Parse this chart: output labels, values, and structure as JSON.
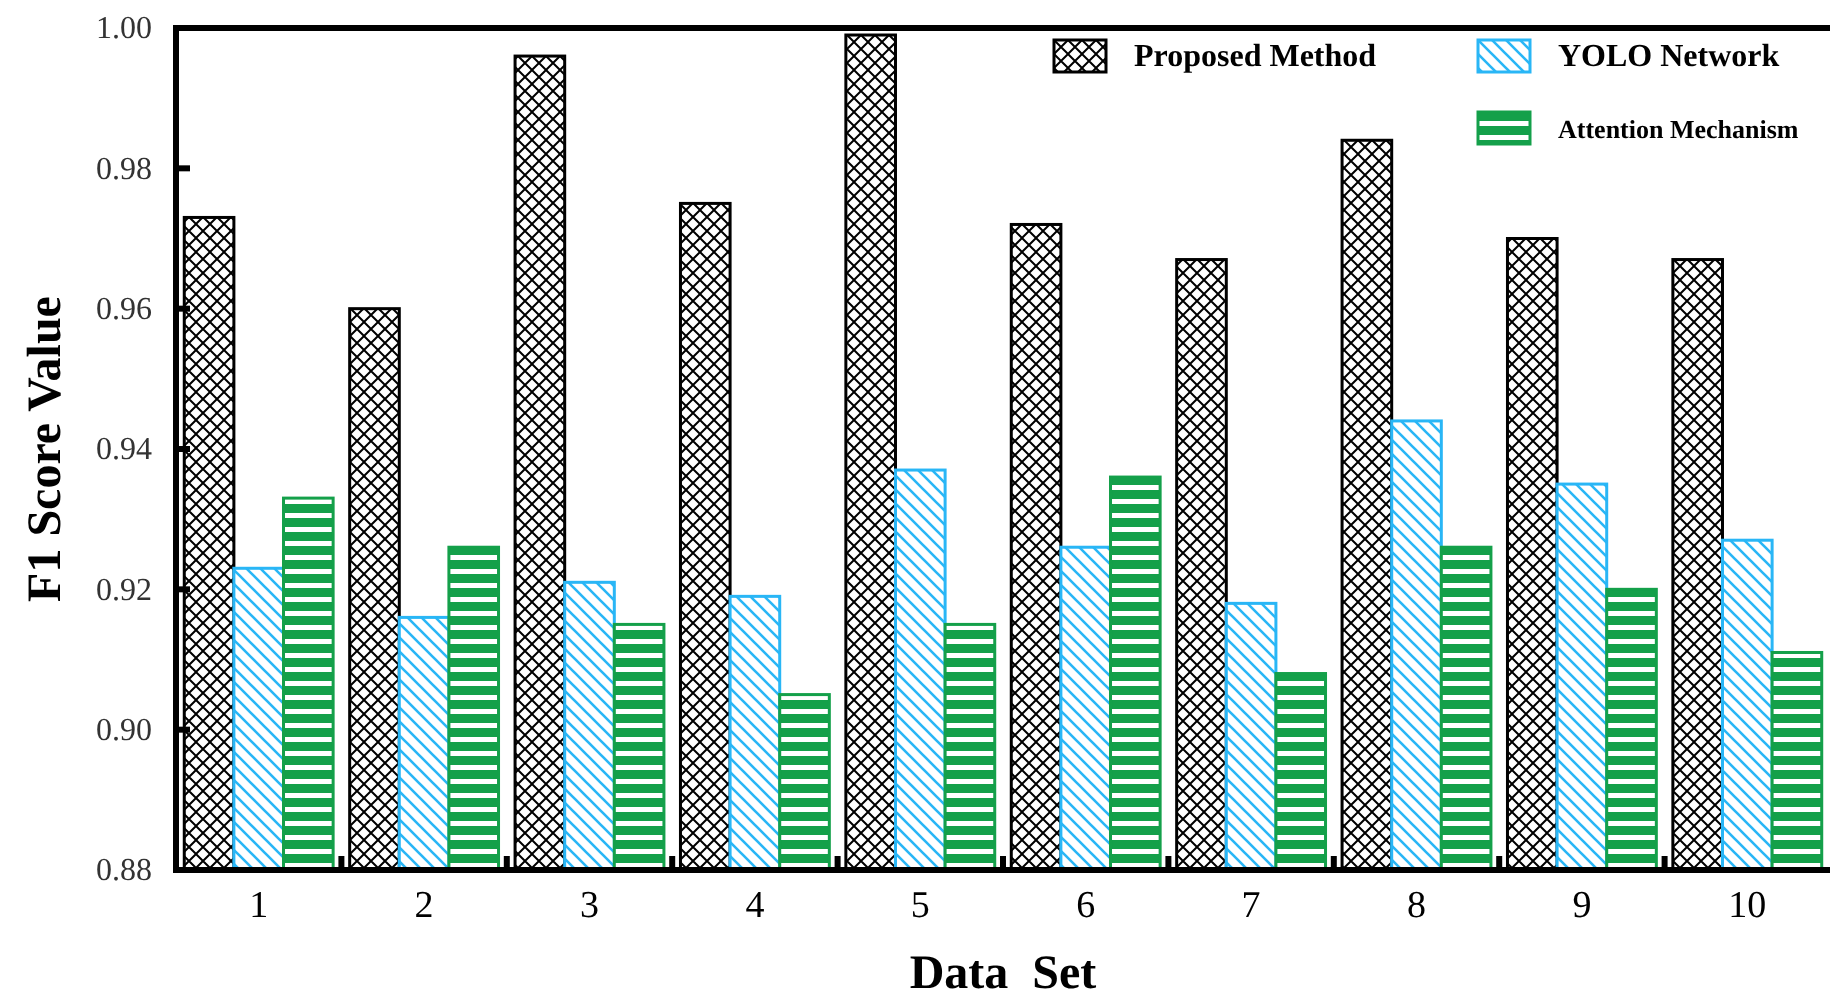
{
  "chart_data": {
    "type": "bar",
    "xlabel": "Data  Set",
    "ylabel": "F1 Score Value",
    "categories": [
      "1",
      "2",
      "3",
      "4",
      "5",
      "6",
      "7",
      "8",
      "9",
      "10"
    ],
    "series": [
      {
        "name": "Proposed Method",
        "color": "#000000",
        "values": [
          0.973,
          0.96,
          0.996,
          0.975,
          0.999,
          0.972,
          0.967,
          0.984,
          0.97,
          0.967
        ]
      },
      {
        "name": "YOLO Network",
        "color": "#29b6f6",
        "values": [
          0.923,
          0.916,
          0.921,
          0.919,
          0.937,
          0.926,
          0.918,
          0.944,
          0.935,
          0.927
        ]
      },
      {
        "name": "Attention Mechanism",
        "color": "#14a04a",
        "values": [
          0.933,
          0.926,
          0.915,
          0.905,
          0.915,
          0.936,
          0.908,
          0.926,
          0.92,
          0.911
        ]
      }
    ],
    "ylim": [
      0.88,
      1.0
    ],
    "yticks": [
      0.88,
      {
        "value": 0.9,
        "label": "0.90"
      },
      0.92,
      0.94,
      0.96,
      0.98,
      {
        "value": 1.0,
        "label": "1.00"
      }
    ],
    "grid": false,
    "legend": "top right"
  }
}
